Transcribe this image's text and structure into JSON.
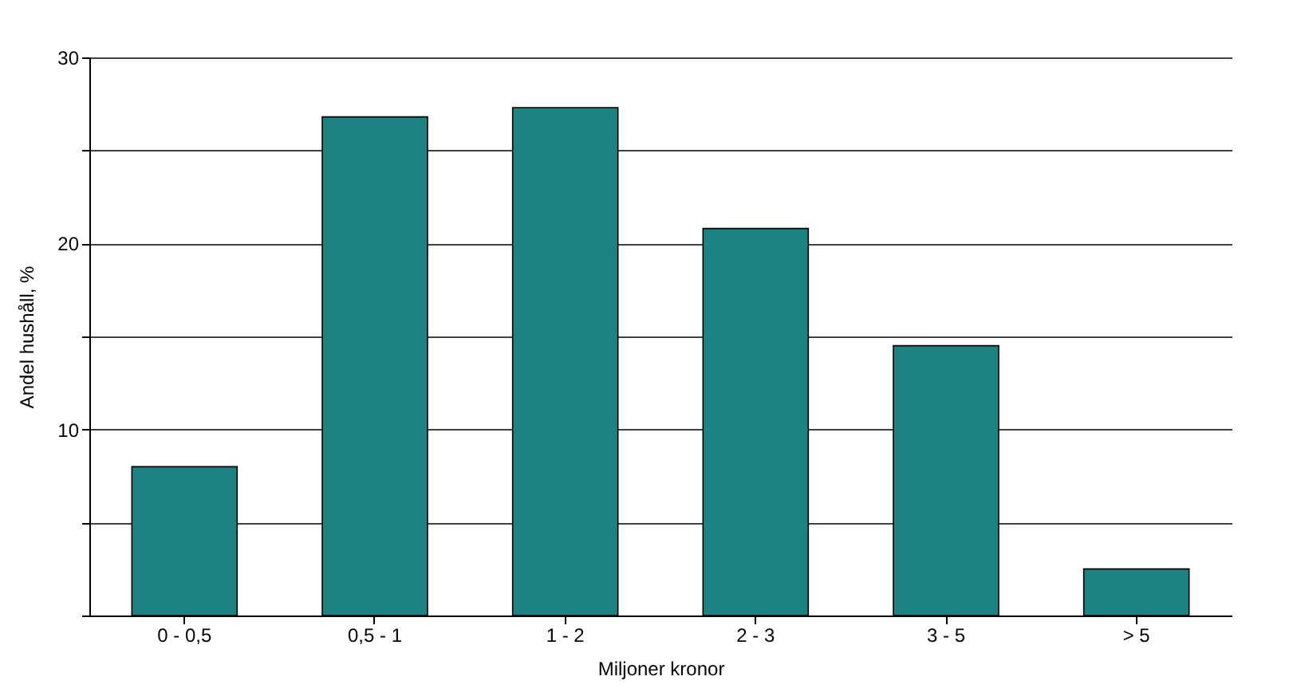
{
  "chart_data": {
    "type": "bar",
    "xlabel": "Miljoner kronor",
    "ylabel": "Andel hushåll, %",
    "categories": [
      "0 - 0,5",
      "0,5 - 1",
      "1 - 2",
      "2 - 3",
      "3 - 5",
      "> 5"
    ],
    "values": [
      8.0,
      26.8,
      27.3,
      20.8,
      14.5,
      2.5
    ],
    "color": "#1e8282",
    "ylim": [
      0,
      30
    ],
    "yticks": [
      {
        "value": 0,
        "label": null
      },
      {
        "value": 5,
        "label": null
      },
      10,
      {
        "value": 15,
        "label": null
      },
      20,
      {
        "value": 25,
        "label": null
      },
      30
    ],
    "grid": "y"
  }
}
